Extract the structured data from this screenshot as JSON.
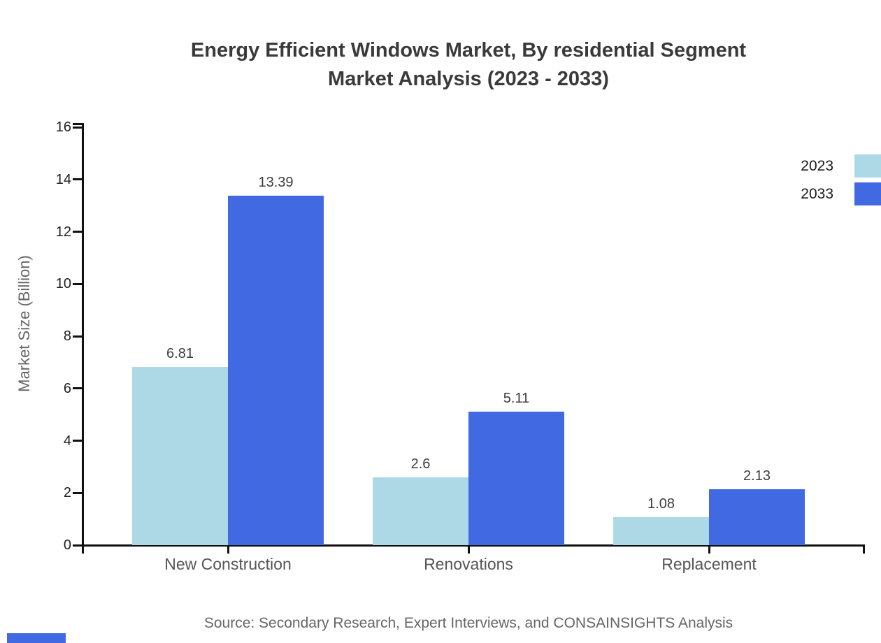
{
  "title": {
    "line1": "Energy Efficient Windows Market, By residential Segment",
    "line2": "Market Analysis (2023 - 2033)"
  },
  "ylabel": "Market Size (Billion)",
  "source": "Source: Secondary Research, Expert Interviews, and CONSAINSIGHTS Analysis",
  "legend": [
    {
      "label": "2023",
      "color": "#ADD8E6"
    },
    {
      "label": "2033",
      "color": "#4169E1"
    }
  ],
  "colors": {
    "series_2023": "#ADD8E6",
    "series_2033": "#4169E1",
    "axis": "#111111",
    "brand": "#4169E1"
  },
  "chart_data": {
    "type": "bar",
    "categories": [
      "New Construction",
      "Renovations",
      "Replacement"
    ],
    "series": [
      {
        "name": "2023",
        "color": "#ADD8E6",
        "values": [
          6.81,
          2.6,
          1.08
        ]
      },
      {
        "name": "2033",
        "color": "#4169E1",
        "values": [
          13.39,
          5.11,
          2.13
        ]
      }
    ],
    "title": "Energy Efficient Windows Market, By residential Segment Market Analysis (2023 - 2033)",
    "xlabel": "",
    "ylabel": "Market Size (Billion)",
    "ylim": [
      0,
      16
    ],
    "yticks": [
      0,
      2,
      4,
      6,
      8,
      10,
      12,
      14,
      16
    ],
    "grid": false,
    "legend_position": "top-right",
    "value_labels_shown": true
  }
}
